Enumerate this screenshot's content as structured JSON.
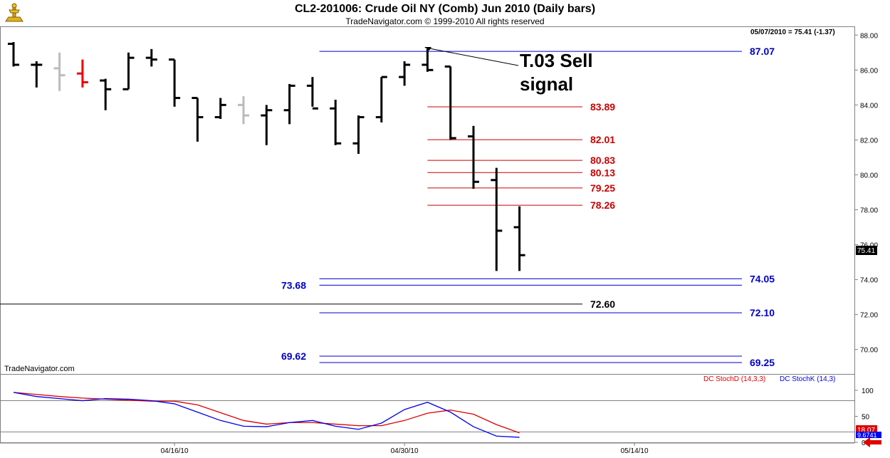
{
  "header": {
    "title": "CL2-201006:  Crude Oil NY (Comb) Jun 2010  (Daily bars)",
    "subtitle": "TradeNavigator.com © 1999-2010 All rights reserved"
  },
  "price_panel": {
    "readout": "05/07/2010 = 75.41 (-1.37)",
    "watermark": "TradeNavigator.com",
    "last_price": "75.41",
    "annotation": {
      "line1": "T.03 Sell",
      "line2": "signal"
    }
  },
  "stoch_panel": {
    "legend_d": "DC StochD (14,3,3)",
    "legend_k": "DC StochK (14,3)",
    "last_d": "18.07",
    "last_k": "9.6741"
  },
  "colors": {
    "blue_level": "#0000cc",
    "red_level": "#cc0000",
    "stoch_d": "#dd0000",
    "stoch_k": "#0000ee",
    "bar_black": "#000000",
    "bar_gray": "#bbbbbb",
    "bar_red": "#ee0000"
  },
  "chart_data": [
    {
      "type": "ohlc",
      "ylim": [
        68.6,
        88.5
      ],
      "yticks": [
        "88.00",
        "86.00",
        "84.00",
        "82.00",
        "80.00",
        "78.00",
        "76.00",
        "74.00",
        "72.00",
        "70.00"
      ],
      "ytick_values": [
        88,
        86,
        84,
        82,
        80,
        78,
        76,
        74,
        72,
        70
      ],
      "xtick_labels": [
        "04/16/10",
        "04/30/10",
        "05/14/10"
      ],
      "xtick_index": [
        7,
        17,
        27
      ],
      "bars": [
        {
          "o": 87.5,
          "h": 87.6,
          "l": 86.2,
          "c": 86.3,
          "color": "black"
        },
        {
          "o": 86.3,
          "h": 86.5,
          "l": 85.0,
          "c": 86.3,
          "color": "black"
        },
        {
          "o": 86.1,
          "h": 87.0,
          "l": 84.8,
          "c": 85.7,
          "color": "gray"
        },
        {
          "o": 85.8,
          "h": 86.6,
          "l": 85.0,
          "c": 85.3,
          "color": "red"
        },
        {
          "o": 85.4,
          "h": 85.5,
          "l": 83.7,
          "c": 84.9,
          "color": "black"
        },
        {
          "o": 84.9,
          "h": 87.0,
          "l": 84.9,
          "c": 86.7,
          "color": "black"
        },
        {
          "o": 86.7,
          "h": 87.2,
          "l": 86.2,
          "c": 86.6,
          "color": "black"
        },
        {
          "o": 86.6,
          "h": 86.6,
          "l": 83.9,
          "c": 84.4,
          "color": "black"
        },
        {
          "o": 84.4,
          "h": 84.4,
          "l": 81.9,
          "c": 83.3,
          "color": "black"
        },
        {
          "o": 83.3,
          "h": 84.4,
          "l": 83.2,
          "c": 84.0,
          "color": "black"
        },
        {
          "o": 84.0,
          "h": 84.5,
          "l": 82.9,
          "c": 83.4,
          "color": "gray"
        },
        {
          "o": 83.4,
          "h": 84.0,
          "l": 81.7,
          "c": 83.7,
          "color": "black"
        },
        {
          "o": 83.7,
          "h": 85.2,
          "l": 82.9,
          "c": 85.1,
          "color": "black"
        },
        {
          "o": 85.1,
          "h": 85.6,
          "l": 83.9,
          "c": 83.8,
          "color": "black"
        },
        {
          "o": 83.8,
          "h": 84.3,
          "l": 81.7,
          "c": 81.8,
          "color": "black"
        },
        {
          "o": 81.8,
          "h": 83.4,
          "l": 81.2,
          "c": 83.3,
          "color": "black"
        },
        {
          "o": 83.3,
          "h": 85.6,
          "l": 83.0,
          "c": 85.6,
          "color": "black"
        },
        {
          "o": 85.6,
          "h": 86.5,
          "l": 85.1,
          "c": 86.3,
          "color": "black"
        },
        {
          "o": 86.3,
          "h": 87.2,
          "l": 85.9,
          "c": 86.0,
          "color": "black"
        },
        {
          "o": 86.2,
          "h": 86.2,
          "l": 82.0,
          "c": 82.1,
          "color": "black"
        },
        {
          "o": 82.2,
          "h": 82.8,
          "l": 79.2,
          "c": 79.6,
          "color": "black"
        },
        {
          "o": 79.7,
          "h": 80.4,
          "l": 74.5,
          "c": 76.8,
          "color": "black"
        },
        {
          "o": 77.0,
          "h": 78.2,
          "l": 74.5,
          "c": 75.4,
          "color": "black"
        }
      ],
      "levels": [
        {
          "value": 87.07,
          "label": "87.07",
          "color": "blue",
          "from_bar": 13.3,
          "label_side": "right"
        },
        {
          "value": 83.89,
          "label": "83.89",
          "color": "red",
          "from_bar": 18.0,
          "label_side": "mid"
        },
        {
          "value": 82.01,
          "label": "82.01",
          "color": "red",
          "from_bar": 18.0,
          "label_side": "mid"
        },
        {
          "value": 80.83,
          "label": "80.83",
          "color": "red",
          "from_bar": 18.0,
          "label_side": "mid"
        },
        {
          "value": 80.13,
          "label": "80.13",
          "color": "red",
          "from_bar": 18.0,
          "label_side": "mid"
        },
        {
          "value": 79.25,
          "label": "79.25",
          "color": "red",
          "from_bar": 18.0,
          "label_side": "mid"
        },
        {
          "value": 78.26,
          "label": "78.26",
          "color": "red",
          "from_bar": 18.0,
          "label_side": "mid"
        },
        {
          "value": 74.05,
          "label": "74.05",
          "color": "blue",
          "from_bar": 13.3,
          "label_side": "right"
        },
        {
          "value": 73.68,
          "label": "73.68",
          "color": "blue",
          "from_bar": 13.3,
          "label_side": "left"
        },
        {
          "value": 72.6,
          "label": "72.60",
          "color": "black",
          "from_bar": -1.0,
          "label_side": "mid"
        },
        {
          "value": 72.1,
          "label": "72.10",
          "color": "blue",
          "from_bar": 13.3,
          "label_side": "right"
        },
        {
          "value": 69.62,
          "label": "69.62",
          "color": "blue",
          "from_bar": 13.3,
          "label_side": "left"
        },
        {
          "value": 69.25,
          "label": "69.25",
          "color": "blue",
          "from_bar": 13.3,
          "label_side": "right"
        }
      ]
    },
    {
      "type": "line",
      "ylim": [
        0,
        130
      ],
      "yticks": [
        "100",
        "50",
        "0"
      ],
      "ytick_values": [
        100,
        50,
        0
      ],
      "ref_lines": [
        80,
        20
      ],
      "x_index": [
        0,
        1,
        2,
        3,
        4,
        5,
        6,
        7,
        8,
        9,
        10,
        11,
        12,
        13,
        14,
        15,
        16,
        17,
        18,
        19,
        20,
        21,
        22
      ],
      "series": [
        {
          "name": "DC StochD (14,3,3)",
          "color_key": "stoch_d",
          "values": [
            96,
            92,
            88,
            85,
            83,
            81,
            79,
            79,
            72,
            57,
            42,
            35,
            38,
            38,
            35,
            32,
            32,
            42,
            56,
            62,
            54,
            34,
            18.07
          ]
        },
        {
          "name": "DC StochK (14,3)",
          "color_key": "stoch_k",
          "values": [
            96,
            88,
            84,
            80,
            84,
            83,
            80,
            74,
            58,
            42,
            31,
            30,
            38,
            42,
            31,
            25,
            37,
            63,
            77,
            58,
            30,
            12,
            9.67
          ]
        }
      ]
    }
  ]
}
